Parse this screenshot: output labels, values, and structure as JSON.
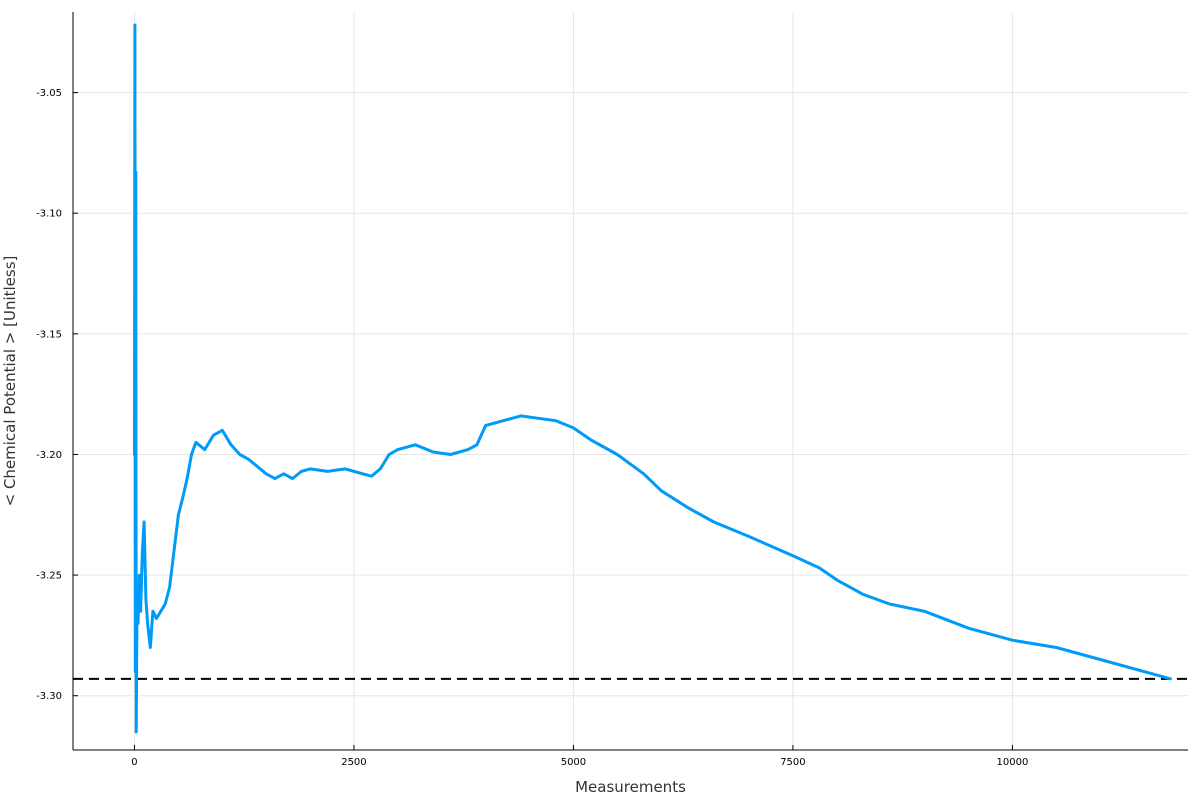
{
  "chart_data": {
    "type": "line",
    "title": "",
    "xlabel": "Measurements",
    "ylabel": "< Chemical Potential > [Unitless]",
    "xlim": [
      -700,
      12000
    ],
    "ylim": [
      -3.3225,
      -3.0166
    ],
    "x_ticks": [
      0,
      2500,
      5000,
      7500,
      10000
    ],
    "x_tick_labels": [
      "0",
      "2500",
      "5000",
      "7500",
      "10000"
    ],
    "y_ticks": [
      -3.05,
      -3.1,
      -3.15,
      -3.2,
      -3.25,
      -3.3
    ],
    "y_tick_labels": [
      "-3.05",
      "-3.10",
      "-3.15",
      "-3.20",
      "-3.25",
      "-3.30"
    ],
    "grid": true,
    "legend": "none",
    "colors": {
      "series": "#009af9",
      "reference": "#000000",
      "grid": "#e6e6e6",
      "axis": "#000000"
    },
    "series": [
      {
        "x": [
          0,
          5,
          10,
          15,
          20,
          30,
          40,
          55,
          70,
          90,
          110,
          130,
          150,
          180,
          210,
          250,
          300,
          350,
          400,
          450,
          500,
          550,
          600,
          650,
          700,
          800,
          900,
          1000,
          1100,
          1200,
          1300,
          1400,
          1500,
          1600,
          1700,
          1800,
          1900,
          2000,
          2200,
          2400,
          2600,
          2700,
          2800,
          2900,
          3000,
          3200,
          3400,
          3600,
          3800,
          3900,
          4000,
          4200,
          4400,
          4600,
          4800,
          5000,
          5200,
          5500,
          5800,
          6000,
          6300,
          6600,
          7000,
          7500,
          7800,
          8000,
          8300,
          8600,
          9000,
          9500,
          10000,
          10500,
          11000,
          11500,
          11800
        ],
        "y": [
          -3.2,
          -3.022,
          -3.29,
          -3.083,
          -3.315,
          -3.255,
          -3.27,
          -3.25,
          -3.265,
          -3.24,
          -3.228,
          -3.26,
          -3.27,
          -3.28,
          -3.265,
          -3.268,
          -3.265,
          -3.262,
          -3.255,
          -3.24,
          -3.225,
          -3.218,
          -3.21,
          -3.2,
          -3.195,
          -3.198,
          -3.192,
          -3.19,
          -3.196,
          -3.2,
          -3.202,
          -3.205,
          -3.208,
          -3.21,
          -3.208,
          -3.21,
          -3.207,
          -3.206,
          -3.207,
          -3.206,
          -3.208,
          -3.209,
          -3.206,
          -3.2,
          -3.198,
          -3.196,
          -3.199,
          -3.2,
          -3.198,
          -3.196,
          -3.188,
          -3.186,
          -3.184,
          -3.185,
          -3.186,
          -3.189,
          -3.194,
          -3.2,
          -3.208,
          -3.215,
          -3.222,
          -3.228,
          -3.234,
          -3.242,
          -3.247,
          -3.252,
          -3.258,
          -3.262,
          -3.265,
          -3.272,
          -3.277,
          -3.28,
          -3.285,
          -3.29,
          -3.293
        ]
      }
    ],
    "reference_line": {
      "y": -3.293,
      "style": "dashed"
    }
  }
}
